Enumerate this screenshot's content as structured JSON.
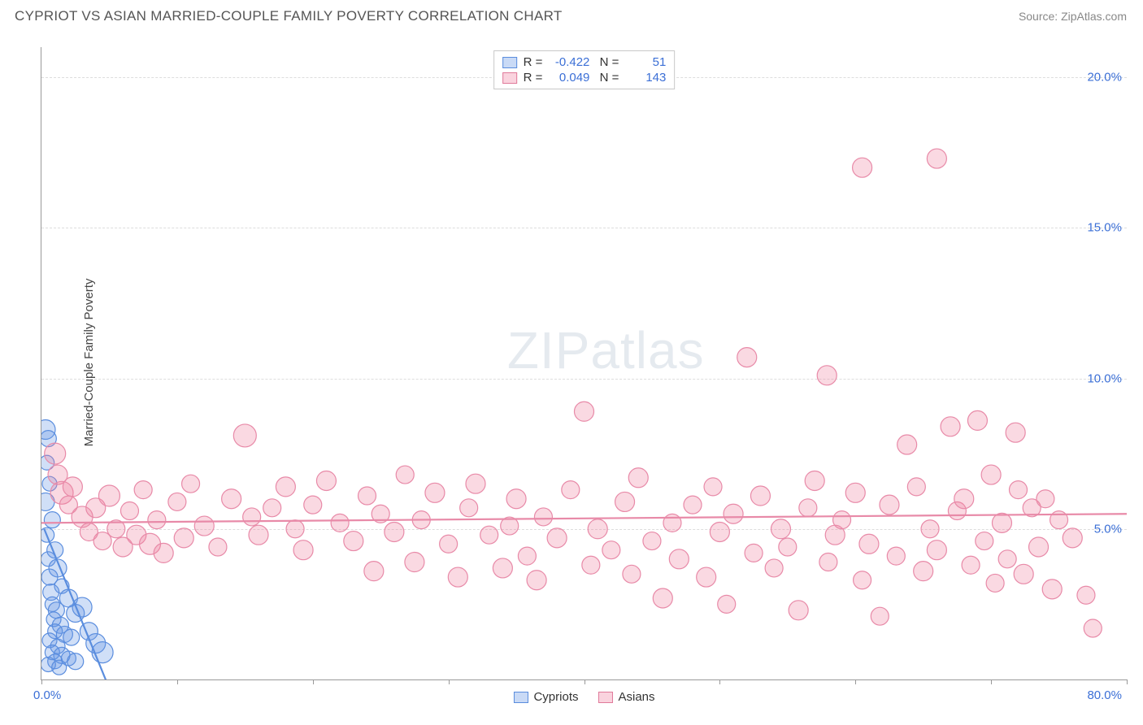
{
  "header": {
    "title": "CYPRIOT VS ASIAN MARRIED-COUPLE FAMILY POVERTY CORRELATION CHART",
    "source": "Source: ZipAtlas.com"
  },
  "watermark": {
    "zip": "ZIP",
    "atlas": "atlas"
  },
  "chart": {
    "type": "scatter",
    "ylabel": "Married-Couple Family Poverty",
    "xlim": [
      0,
      80
    ],
    "ylim": [
      0,
      21
    ],
    "xtick_positions": [
      0,
      10,
      20,
      30,
      40,
      50,
      60,
      70,
      80
    ],
    "ytick_positions": [
      5,
      10,
      15,
      20
    ],
    "ytick_labels": [
      "5.0%",
      "10.0%",
      "15.0%",
      "20.0%"
    ],
    "xlabel_min": "0.0%",
    "xlabel_max": "80.0%",
    "grid_color": "#dddddd",
    "axis_color": "#999999",
    "tick_label_color": "#3b6fd6",
    "background_color": "#ffffff",
    "series": [
      {
        "name": "Cypriots",
        "color_fill": "rgba(100,150,230,0.30)",
        "color_stroke": "#5a8dde",
        "R": "-0.422",
        "N": "51",
        "trend": {
          "x1": 0.2,
          "y1": 5.0,
          "x2": 5.0,
          "y2": -0.3
        },
        "points": [
          {
            "x": 0.3,
            "y": 8.3,
            "r": 12
          },
          {
            "x": 0.5,
            "y": 8.0,
            "r": 10
          },
          {
            "x": 0.4,
            "y": 7.2,
            "r": 9
          },
          {
            "x": 0.6,
            "y": 6.5,
            "r": 9
          },
          {
            "x": 0.3,
            "y": 5.9,
            "r": 11
          },
          {
            "x": 0.8,
            "y": 5.3,
            "r": 10
          },
          {
            "x": 0.4,
            "y": 4.8,
            "r": 9
          },
          {
            "x": 1.0,
            "y": 4.3,
            "r": 10
          },
          {
            "x": 0.5,
            "y": 4.0,
            "r": 9
          },
          {
            "x": 1.2,
            "y": 3.7,
            "r": 11
          },
          {
            "x": 0.6,
            "y": 3.4,
            "r": 10
          },
          {
            "x": 1.5,
            "y": 3.1,
            "r": 9
          },
          {
            "x": 0.7,
            "y": 2.9,
            "r": 10
          },
          {
            "x": 2.0,
            "y": 2.7,
            "r": 11
          },
          {
            "x": 0.8,
            "y": 2.5,
            "r": 9
          },
          {
            "x": 1.1,
            "y": 2.3,
            "r": 10
          },
          {
            "x": 2.5,
            "y": 2.2,
            "r": 11
          },
          {
            "x": 0.9,
            "y": 2.0,
            "r": 9
          },
          {
            "x": 1.4,
            "y": 1.8,
            "r": 10
          },
          {
            "x": 3.0,
            "y": 2.4,
            "r": 12
          },
          {
            "x": 1.0,
            "y": 1.6,
            "r": 9
          },
          {
            "x": 1.7,
            "y": 1.5,
            "r": 10
          },
          {
            "x": 0.6,
            "y": 1.3,
            "r": 9
          },
          {
            "x": 2.2,
            "y": 1.4,
            "r": 10
          },
          {
            "x": 1.2,
            "y": 1.1,
            "r": 9
          },
          {
            "x": 3.5,
            "y": 1.6,
            "r": 11
          },
          {
            "x": 0.8,
            "y": 0.9,
            "r": 9
          },
          {
            "x": 1.5,
            "y": 0.8,
            "r": 10
          },
          {
            "x": 4.0,
            "y": 1.2,
            "r": 12
          },
          {
            "x": 2.0,
            "y": 0.7,
            "r": 9
          },
          {
            "x": 1.0,
            "y": 0.6,
            "r": 9
          },
          {
            "x": 4.5,
            "y": 0.9,
            "r": 13
          },
          {
            "x": 0.5,
            "y": 0.5,
            "r": 9
          },
          {
            "x": 2.5,
            "y": 0.6,
            "r": 10
          },
          {
            "x": 1.3,
            "y": 0.4,
            "r": 9
          }
        ]
      },
      {
        "name": "Asians",
        "color_fill": "rgba(240,130,160,0.30)",
        "color_stroke": "#e88aa8",
        "R": "0.049",
        "N": "143",
        "trend": {
          "x1": 0,
          "y1": 5.2,
          "x2": 80,
          "y2": 5.5
        },
        "points": [
          {
            "x": 1,
            "y": 7.5,
            "r": 13
          },
          {
            "x": 1.2,
            "y": 6.8,
            "r": 12
          },
          {
            "x": 1.5,
            "y": 6.2,
            "r": 14
          },
          {
            "x": 2,
            "y": 5.8,
            "r": 11
          },
          {
            "x": 2.3,
            "y": 6.4,
            "r": 12
          },
          {
            "x": 3,
            "y": 5.4,
            "r": 13
          },
          {
            "x": 3.5,
            "y": 4.9,
            "r": 11
          },
          {
            "x": 4,
            "y": 5.7,
            "r": 12
          },
          {
            "x": 4.5,
            "y": 4.6,
            "r": 11
          },
          {
            "x": 5,
            "y": 6.1,
            "r": 13
          },
          {
            "x": 5.5,
            "y": 5.0,
            "r": 11
          },
          {
            "x": 6,
            "y": 4.4,
            "r": 12
          },
          {
            "x": 6.5,
            "y": 5.6,
            "r": 11
          },
          {
            "x": 7,
            "y": 4.8,
            "r": 12
          },
          {
            "x": 7.5,
            "y": 6.3,
            "r": 11
          },
          {
            "x": 8,
            "y": 4.5,
            "r": 13
          },
          {
            "x": 8.5,
            "y": 5.3,
            "r": 11
          },
          {
            "x": 9,
            "y": 4.2,
            "r": 12
          },
          {
            "x": 10,
            "y": 5.9,
            "r": 11
          },
          {
            "x": 10.5,
            "y": 4.7,
            "r": 12
          },
          {
            "x": 11,
            "y": 6.5,
            "r": 11
          },
          {
            "x": 12,
            "y": 5.1,
            "r": 12
          },
          {
            "x": 13,
            "y": 4.4,
            "r": 11
          },
          {
            "x": 14,
            "y": 6.0,
            "r": 12
          },
          {
            "x": 15,
            "y": 8.1,
            "r": 14
          },
          {
            "x": 15.5,
            "y": 5.4,
            "r": 11
          },
          {
            "x": 16,
            "y": 4.8,
            "r": 12
          },
          {
            "x": 17,
            "y": 5.7,
            "r": 11
          },
          {
            "x": 18,
            "y": 6.4,
            "r": 12
          },
          {
            "x": 18.7,
            "y": 5.0,
            "r": 11
          },
          {
            "x": 19.3,
            "y": 4.3,
            "r": 12
          },
          {
            "x": 20,
            "y": 5.8,
            "r": 11
          },
          {
            "x": 21,
            "y": 6.6,
            "r": 12
          },
          {
            "x": 22,
            "y": 5.2,
            "r": 11
          },
          {
            "x": 23,
            "y": 4.6,
            "r": 12
          },
          {
            "x": 24,
            "y": 6.1,
            "r": 11
          },
          {
            "x": 24.5,
            "y": 3.6,
            "r": 12
          },
          {
            "x": 25,
            "y": 5.5,
            "r": 11
          },
          {
            "x": 26,
            "y": 4.9,
            "r": 12
          },
          {
            "x": 26.8,
            "y": 6.8,
            "r": 11
          },
          {
            "x": 27.5,
            "y": 3.9,
            "r": 12
          },
          {
            "x": 28,
            "y": 5.3,
            "r": 11
          },
          {
            "x": 29,
            "y": 6.2,
            "r": 12
          },
          {
            "x": 30,
            "y": 4.5,
            "r": 11
          },
          {
            "x": 30.7,
            "y": 3.4,
            "r": 12
          },
          {
            "x": 31.5,
            "y": 5.7,
            "r": 11
          },
          {
            "x": 32,
            "y": 6.5,
            "r": 12
          },
          {
            "x": 33,
            "y": 4.8,
            "r": 11
          },
          {
            "x": 34,
            "y": 3.7,
            "r": 12
          },
          {
            "x": 34.5,
            "y": 5.1,
            "r": 11
          },
          {
            "x": 35,
            "y": 6.0,
            "r": 12
          },
          {
            "x": 35.8,
            "y": 4.1,
            "r": 11
          },
          {
            "x": 36.5,
            "y": 3.3,
            "r": 12
          },
          {
            "x": 37,
            "y": 5.4,
            "r": 11
          },
          {
            "x": 38,
            "y": 4.7,
            "r": 12
          },
          {
            "x": 39,
            "y": 6.3,
            "r": 11
          },
          {
            "x": 40,
            "y": 8.9,
            "r": 12
          },
          {
            "x": 40.5,
            "y": 3.8,
            "r": 11
          },
          {
            "x": 41,
            "y": 5.0,
            "r": 12
          },
          {
            "x": 42,
            "y": 4.3,
            "r": 11
          },
          {
            "x": 43,
            "y": 5.9,
            "r": 12
          },
          {
            "x": 43.5,
            "y": 3.5,
            "r": 11
          },
          {
            "x": 44,
            "y": 6.7,
            "r": 12
          },
          {
            "x": 45,
            "y": 4.6,
            "r": 11
          },
          {
            "x": 45.8,
            "y": 2.7,
            "r": 12
          },
          {
            "x": 46.5,
            "y": 5.2,
            "r": 11
          },
          {
            "x": 47,
            "y": 4.0,
            "r": 12
          },
          {
            "x": 48,
            "y": 5.8,
            "r": 11
          },
          {
            "x": 49,
            "y": 3.4,
            "r": 12
          },
          {
            "x": 49.5,
            "y": 6.4,
            "r": 11
          },
          {
            "x": 50,
            "y": 4.9,
            "r": 12
          },
          {
            "x": 50.5,
            "y": 2.5,
            "r": 11
          },
          {
            "x": 51,
            "y": 5.5,
            "r": 12
          },
          {
            "x": 52,
            "y": 10.7,
            "r": 12
          },
          {
            "x": 52.5,
            "y": 4.2,
            "r": 11
          },
          {
            "x": 53,
            "y": 6.1,
            "r": 12
          },
          {
            "x": 54,
            "y": 3.7,
            "r": 11
          },
          {
            "x": 54.5,
            "y": 5.0,
            "r": 12
          },
          {
            "x": 55,
            "y": 4.4,
            "r": 11
          },
          {
            "x": 55.8,
            "y": 2.3,
            "r": 12
          },
          {
            "x": 56.5,
            "y": 5.7,
            "r": 11
          },
          {
            "x": 57,
            "y": 6.6,
            "r": 12
          },
          {
            "x": 57.9,
            "y": 10.1,
            "r": 12
          },
          {
            "x": 58,
            "y": 3.9,
            "r": 11
          },
          {
            "x": 58.5,
            "y": 4.8,
            "r": 12
          },
          {
            "x": 59,
            "y": 5.3,
            "r": 11
          },
          {
            "x": 60,
            "y": 6.2,
            "r": 12
          },
          {
            "x": 60.5,
            "y": 3.3,
            "r": 11
          },
          {
            "x": 61,
            "y": 4.5,
            "r": 12
          },
          {
            "x": 61.8,
            "y": 2.1,
            "r": 11
          },
          {
            "x": 62.5,
            "y": 5.8,
            "r": 12
          },
          {
            "x": 63,
            "y": 4.1,
            "r": 11
          },
          {
            "x": 63.8,
            "y": 7.8,
            "r": 12
          },
          {
            "x": 64.5,
            "y": 6.4,
            "r": 11
          },
          {
            "x": 65,
            "y": 3.6,
            "r": 12
          },
          {
            "x": 65.5,
            "y": 5.0,
            "r": 11
          },
          {
            "x": 66,
            "y": 4.3,
            "r": 12
          },
          {
            "x": 67,
            "y": 8.4,
            "r": 12
          },
          {
            "x": 67.5,
            "y": 5.6,
            "r": 11
          },
          {
            "x": 68,
            "y": 6.0,
            "r": 12
          },
          {
            "x": 68.5,
            "y": 3.8,
            "r": 11
          },
          {
            "x": 69,
            "y": 8.6,
            "r": 12
          },
          {
            "x": 69.5,
            "y": 4.6,
            "r": 11
          },
          {
            "x": 70,
            "y": 6.8,
            "r": 12
          },
          {
            "x": 70.3,
            "y": 3.2,
            "r": 11
          },
          {
            "x": 70.8,
            "y": 5.2,
            "r": 12
          },
          {
            "x": 71.2,
            "y": 4.0,
            "r": 11
          },
          {
            "x": 71.8,
            "y": 8.2,
            "r": 12
          },
          {
            "x": 72,
            "y": 6.3,
            "r": 11
          },
          {
            "x": 72.4,
            "y": 3.5,
            "r": 12
          },
          {
            "x": 73,
            "y": 5.7,
            "r": 11
          },
          {
            "x": 73.5,
            "y": 4.4,
            "r": 12
          },
          {
            "x": 74,
            "y": 6.0,
            "r": 11
          },
          {
            "x": 74.5,
            "y": 3.0,
            "r": 12
          },
          {
            "x": 75,
            "y": 5.3,
            "r": 11
          },
          {
            "x": 76,
            "y": 4.7,
            "r": 12
          },
          {
            "x": 77,
            "y": 2.8,
            "r": 11
          },
          {
            "x": 60.5,
            "y": 17.0,
            "r": 12
          },
          {
            "x": 66,
            "y": 17.3,
            "r": 12
          },
          {
            "x": 77.5,
            "y": 1.7,
            "r": 11
          }
        ]
      }
    ],
    "legend_bottom": [
      {
        "swatch": "blue",
        "label": "Cypriots"
      },
      {
        "swatch": "pink",
        "label": "Asians"
      }
    ]
  }
}
